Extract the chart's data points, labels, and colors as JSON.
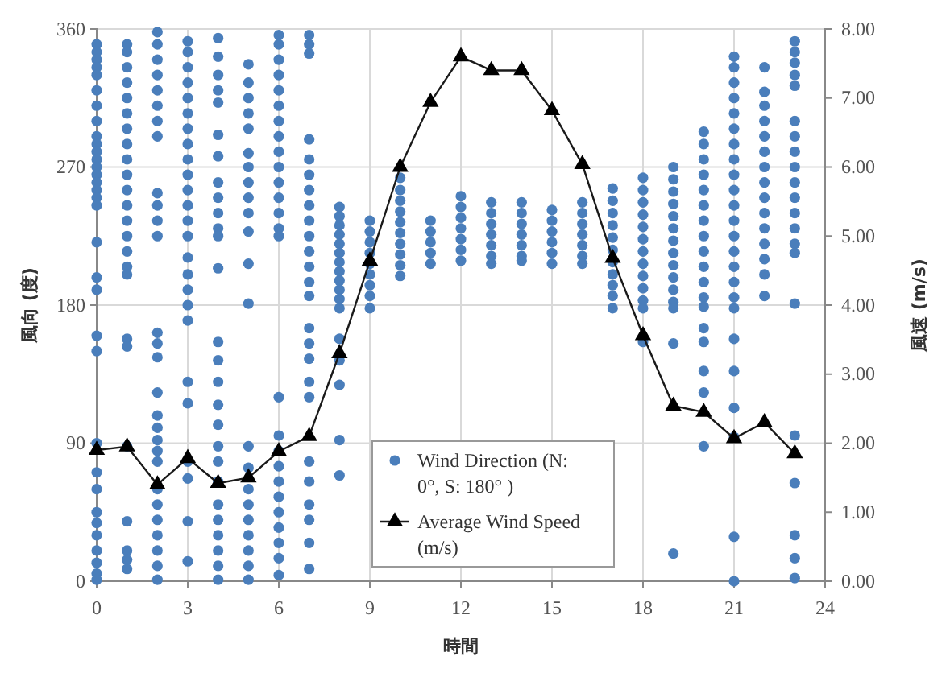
{
  "chart_data": {
    "type": "scatter",
    "xlabel": "時間",
    "ylabel": "風向 (度)",
    "y2label": "風速 (m/s)",
    "xlim": [
      0,
      24
    ],
    "xticks": [
      0,
      3,
      6,
      9,
      12,
      15,
      18,
      21,
      24
    ],
    "ylim": [
      0,
      360
    ],
    "yticks": [
      0,
      90,
      180,
      270,
      360
    ],
    "y2lim": [
      0,
      8
    ],
    "y2ticks": [
      {
        "value": 0,
        "label": "0.00"
      },
      {
        "value": 1,
        "label": "1.00"
      },
      {
        "value": 2,
        "label": "2.00"
      },
      {
        "value": 3,
        "label": "3.00"
      },
      {
        "value": 4,
        "label": "4.00"
      },
      {
        "value": 5,
        "label": "5.00"
      },
      {
        "value": 6,
        "label": "6.00"
      },
      {
        "value": 7,
        "label": "7.00"
      },
      {
        "value": 8,
        "label": "8.00"
      }
    ],
    "grid": true,
    "legend": "bottom",
    "series": [
      {
        "name": "Wind Direction (N: 0°, S: 180° )",
        "marker": "circle",
        "color": "#4a7ebb",
        "x": [
          0,
          0,
          0,
          0,
          0,
          0,
          0,
          0,
          0,
          0,
          0,
          0,
          0,
          0,
          0,
          0,
          0,
          0,
          0,
          0,
          0,
          0,
          0,
          0,
          0,
          0,
          0,
          0,
          0,
          0,
          0,
          0,
          0,
          1,
          1,
          1,
          1,
          1,
          1,
          1,
          1,
          1,
          1,
          1,
          1,
          1,
          1,
          1,
          1,
          1,
          1,
          1,
          1,
          1,
          1,
          1,
          1,
          2,
          2,
          2,
          2,
          2,
          2,
          2,
          2,
          2,
          2,
          2,
          2,
          2,
          2,
          2,
          2,
          2,
          2,
          2,
          2,
          2,
          2,
          2,
          2,
          2,
          2,
          2,
          2,
          3,
          3,
          3,
          3,
          3,
          3,
          3,
          3,
          3,
          3,
          3,
          3,
          3,
          3,
          3,
          3,
          3,
          3,
          3,
          3,
          3,
          3,
          3,
          3,
          3,
          4,
          4,
          4,
          4,
          4,
          4,
          4,
          4,
          4,
          4,
          4,
          4,
          4,
          4,
          4,
          4,
          4,
          4,
          4,
          4,
          4,
          4,
          4,
          4,
          4,
          4,
          4,
          5,
          5,
          5,
          5,
          5,
          5,
          5,
          5,
          5,
          5,
          5,
          5,
          5,
          5,
          5,
          5,
          5,
          5,
          5,
          5,
          5,
          5,
          6,
          6,
          6,
          6,
          6,
          6,
          6,
          6,
          6,
          6,
          6,
          6,
          6,
          6,
          6,
          6,
          6,
          6,
          6,
          6,
          6,
          6,
          6,
          6,
          6,
          6,
          7,
          7,
          7,
          7,
          7,
          7,
          7,
          7,
          7,
          7,
          7,
          7,
          7,
          7,
          7,
          7,
          7,
          7,
          7,
          7,
          7,
          7,
          7,
          7,
          7,
          8,
          8,
          8,
          8,
          8,
          8,
          8,
          8,
          8,
          8,
          8,
          8,
          8,
          8,
          8,
          8,
          8,
          9,
          9,
          9,
          9,
          9,
          9,
          9,
          9,
          9,
          10,
          10,
          10,
          10,
          10,
          10,
          10,
          10,
          10,
          10,
          11,
          11,
          11,
          11,
          11,
          12,
          12,
          12,
          12,
          12,
          12,
          12,
          13,
          13,
          13,
          13,
          13,
          13,
          13,
          14,
          14,
          14,
          14,
          14,
          14,
          14,
          15,
          15,
          15,
          15,
          15,
          15,
          16,
          16,
          16,
          16,
          16,
          16,
          16,
          17,
          17,
          17,
          17,
          17,
          17,
          17,
          17,
          17,
          17,
          17,
          18,
          18,
          18,
          18,
          18,
          18,
          18,
          18,
          18,
          18,
          18,
          18,
          18,
          19,
          19,
          19,
          19,
          19,
          19,
          19,
          19,
          19,
          19,
          19,
          19,
          19,
          19,
          19,
          20,
          20,
          20,
          20,
          20,
          20,
          20,
          20,
          20,
          20,
          20,
          20,
          20,
          20,
          20,
          20,
          20,
          20,
          21,
          21,
          21,
          21,
          21,
          21,
          21,
          21,
          21,
          21,
          21,
          21,
          21,
          21,
          21,
          21,
          21,
          21,
          21,
          21,
          21,
          21,
          21,
          21,
          22,
          22,
          22,
          22,
          22,
          22,
          22,
          22,
          22,
          22,
          22,
          22,
          22,
          22,
          22,
          23,
          23,
          23,
          23,
          23,
          23,
          23,
          23,
          23,
          23,
          23,
          23,
          23,
          23,
          23,
          23,
          23,
          23,
          23,
          23,
          23
        ],
        "values": [
          350,
          345,
          340,
          335,
          330,
          320,
          310,
          300,
          290,
          285,
          280,
          275,
          270,
          265,
          260,
          255,
          250,
          245,
          221,
          198,
          190,
          160,
          150,
          90,
          71,
          60,
          45,
          38,
          30,
          20,
          12,
          5,
          1,
          350,
          345,
          335,
          325,
          315,
          305,
          295,
          285,
          275,
          265,
          255,
          245,
          235,
          225,
          215,
          205,
          200,
          158,
          153,
          88,
          39,
          20,
          14,
          8,
          358,
          350,
          340,
          330,
          320,
          310,
          300,
          290,
          253,
          245,
          235,
          225,
          162,
          155,
          146,
          123,
          108,
          100,
          92,
          85,
          78,
          60,
          50,
          40,
          30,
          20,
          10,
          1,
          352,
          345,
          335,
          325,
          315,
          305,
          295,
          285,
          275,
          265,
          255,
          245,
          235,
          225,
          211,
          200,
          190,
          180,
          170,
          130,
          116,
          78,
          67,
          39,
          13,
          354,
          342,
          330,
          320,
          312,
          291,
          277,
          260,
          250,
          240,
          230,
          225,
          204,
          156,
          144,
          130,
          115,
          102,
          88,
          78,
          65,
          50,
          40,
          30,
          20,
          10,
          1,
          337,
          325,
          315,
          305,
          295,
          279,
          270,
          260,
          250,
          240,
          228,
          207,
          181,
          88,
          74,
          60,
          50,
          40,
          30,
          20,
          10,
          1,
          356,
          350,
          340,
          330,
          320,
          310,
          300,
          290,
          280,
          270,
          260,
          250,
          240,
          230,
          225,
          120,
          95,
          85,
          75,
          65,
          55,
          45,
          35,
          25,
          15,
          4,
          356,
          350,
          344,
          288,
          275,
          265,
          255,
          245,
          235,
          225,
          215,
          205,
          195,
          186,
          165,
          155,
          145,
          130,
          120,
          78,
          65,
          50,
          40,
          25,
          8,
          244,
          238,
          232,
          226,
          220,
          214,
          208,
          202,
          196,
          190,
          184,
          178,
          158,
          144,
          128,
          92,
          69,
          235,
          228,
          221,
          214,
          207,
          200,
          193,
          186,
          178,
          263,
          255,
          248,
          241,
          234,
          227,
          220,
          213,
          206,
          199,
          235,
          228,
          221,
          214,
          207,
          251,
          244,
          237,
          230,
          223,
          216,
          209,
          247,
          240,
          233,
          226,
          219,
          212,
          207,
          247,
          240,
          233,
          226,
          219,
          212,
          209,
          242,
          235,
          228,
          221,
          214,
          207,
          247,
          240,
          233,
          226,
          219,
          212,
          207,
          256,
          248,
          240,
          232,
          224,
          216,
          208,
          200,
          193,
          186,
          178,
          263,
          255,
          247,
          239,
          231,
          223,
          215,
          207,
          199,
          191,
          183,
          178,
          156,
          270,
          262,
          254,
          246,
          238,
          230,
          222,
          214,
          206,
          198,
          190,
          182,
          178,
          155,
          18,
          293,
          285,
          275,
          265,
          255,
          245,
          235,
          225,
          215,
          205,
          195,
          185,
          179,
          165,
          156,
          137,
          123,
          88,
          342,
          335,
          325,
          315,
          305,
          295,
          285,
          275,
          265,
          255,
          245,
          235,
          225,
          215,
          205,
          195,
          185,
          178,
          158,
          137,
          113,
          94,
          29,
          0,
          335,
          319,
          310,
          300,
          290,
          280,
          270,
          260,
          250,
          240,
          230,
          220,
          210,
          200,
          186,
          352,
          345,
          338,
          330,
          323,
          300,
          290,
          280,
          270,
          260,
          250,
          240,
          230,
          220,
          214,
          181,
          95,
          64,
          30,
          15,
          2
        ]
      },
      {
        "name": "Average Wind Speed (m/s)",
        "type": "line",
        "axis": "y2",
        "marker": "triangle",
        "line_style": "solid",
        "color": "#1a1a1a",
        "x": [
          0,
          1,
          2,
          3,
          4,
          5,
          6,
          7,
          8,
          9,
          10,
          11,
          12,
          13,
          14,
          15,
          16,
          17,
          18,
          19,
          20,
          21,
          22,
          23
        ],
        "values": [
          1.9,
          1.95,
          1.4,
          1.78,
          1.42,
          1.5,
          1.88,
          2.1,
          3.3,
          4.64,
          6.0,
          6.94,
          7.6,
          7.4,
          7.4,
          6.82,
          6.04,
          4.68,
          3.56,
          2.54,
          2.45,
          2.07,
          2.3,
          1.85
        ]
      }
    ]
  }
}
